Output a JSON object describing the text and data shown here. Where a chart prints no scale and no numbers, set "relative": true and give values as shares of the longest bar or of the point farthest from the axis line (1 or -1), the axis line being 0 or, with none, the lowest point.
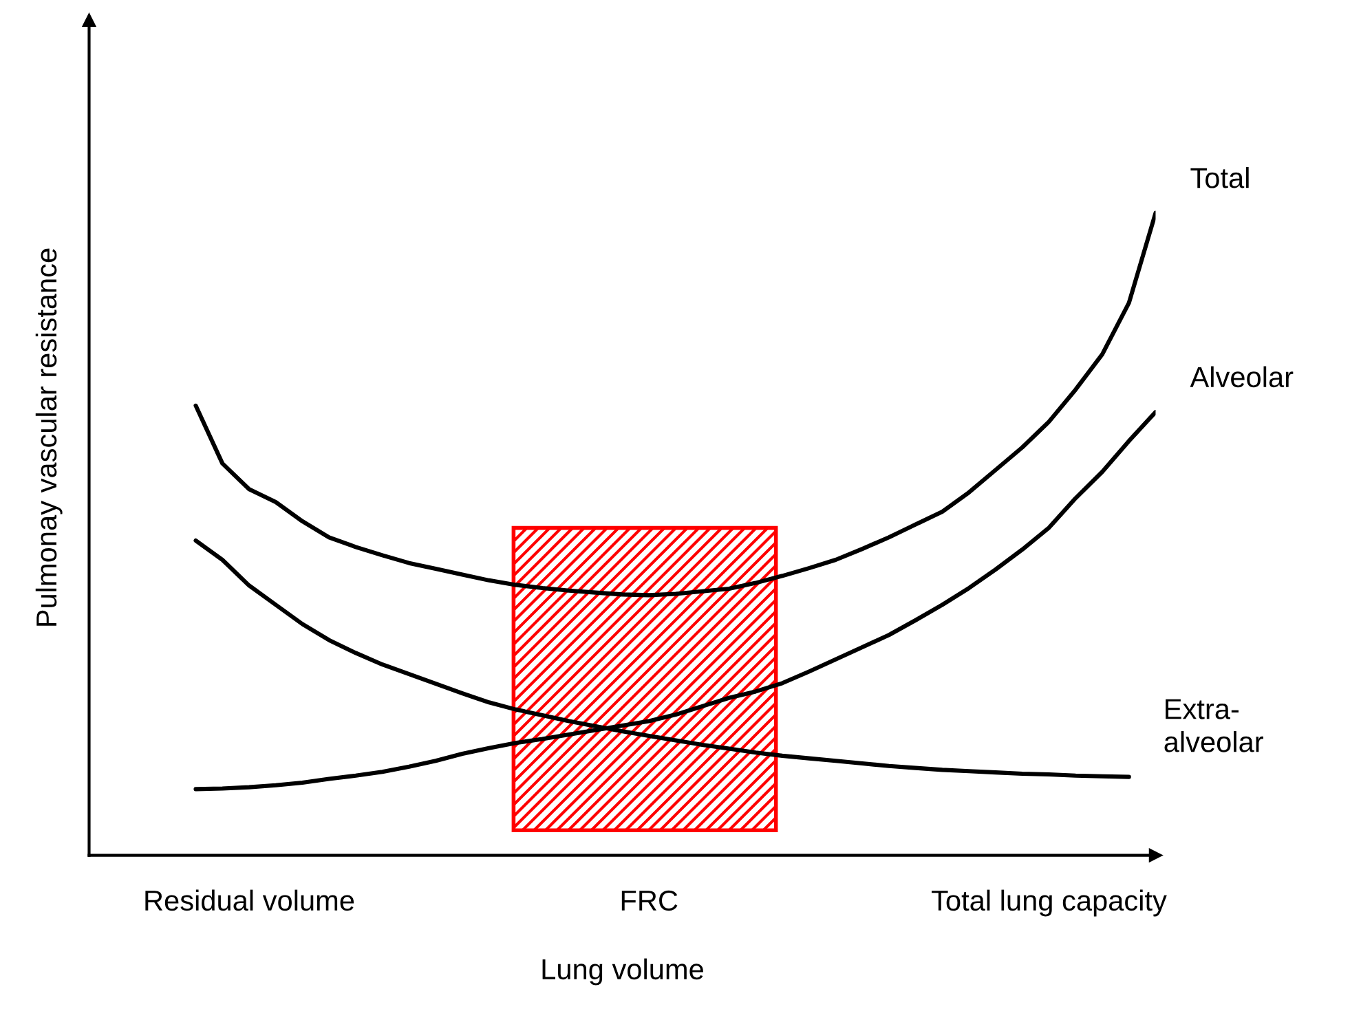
{
  "chart_data": {
    "type": "line",
    "relative": true,
    "xlabel": "Lung volume",
    "ylabel": "Pulmonay vascular resistance",
    "categories": [
      null,
      null,
      null,
      null,
      null,
      null,
      "Residual volume",
      null,
      null,
      null,
      null,
      null,
      null,
      null,
      null,
      null,
      null,
      null,
      null,
      null,
      null,
      "FRC",
      null,
      null,
      null,
      null,
      null,
      null,
      null,
      null,
      null,
      null,
      null,
      null,
      null,
      null,
      "Total lung capacity",
      null,
      null,
      null,
      null
    ],
    "tick_labels": "x",
    "legend": false,
    "line_style": "solid",
    "series": [
      {
        "name": "Total",
        "color": "#000000",
        "values": [
          null,
          null,
          null,
          null,
          0.7,
          0.61,
          0.57,
          0.55,
          0.52,
          0.495,
          0.48,
          0.467,
          0.455,
          0.446,
          0.437,
          0.428,
          0.421,
          0.416,
          0.412,
          0.409,
          0.406,
          0.405,
          0.407,
          0.411,
          0.415,
          0.424,
          0.435,
          0.447,
          0.46,
          0.477,
          0.495,
          0.515,
          0.535,
          0.565,
          0.6,
          0.635,
          0.675,
          0.725,
          0.78,
          0.86,
          1
        ]
      },
      {
        "name": "Alveolar",
        "color": "#000000",
        "values": [
          null,
          null,
          null,
          null,
          0.103,
          0.104,
          0.106,
          0.109,
          0.113,
          0.119,
          0.124,
          0.13,
          0.138,
          0.147,
          0.158,
          0.167,
          0.175,
          0.181,
          0.188,
          0.195,
          0.202,
          0.209,
          0.219,
          0.232,
          0.245,
          0.255,
          0.268,
          0.286,
          0.305,
          0.324,
          0.343,
          0.366,
          0.39,
          0.416,
          0.445,
          0.476,
          0.51,
          0.556,
          0.597,
          0.645,
          0.69
        ]
      },
      {
        "name": "Extra-\nalveolar",
        "color": "#000000",
        "values": [
          null,
          null,
          null,
          null,
          0.49,
          0.46,
          0.42,
          0.39,
          0.36,
          0.335,
          0.315,
          0.297,
          0.282,
          0.267,
          0.252,
          0.238,
          0.227,
          0.218,
          0.209,
          0.201,
          0.193,
          0.186,
          0.179,
          0.172,
          0.166,
          0.16,
          0.155,
          0.151,
          0.147,
          0.143,
          0.139,
          0.136,
          0.133,
          0.131,
          0.129,
          0.127,
          0.126,
          0.124,
          0.123,
          0.122,
          null
        ]
      }
    ]
  }
}
